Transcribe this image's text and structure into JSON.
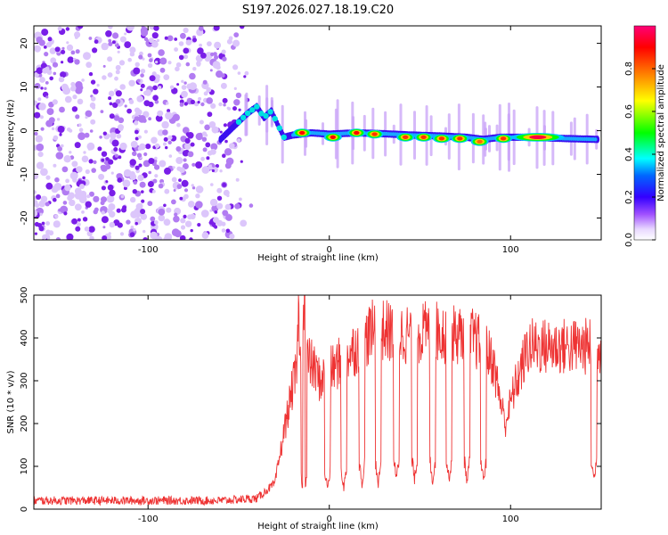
{
  "figure": {
    "title": "S197.2026.027.18.19.C20"
  },
  "chart_data": [
    {
      "type": "heatmap",
      "name": "spectrogram",
      "xlabel": "Height of straight line (km)",
      "ylabel": "Frequency (Hz)",
      "xlim": [
        -163,
        150
      ],
      "ylim": [
        -25,
        24
      ],
      "xticks": [
        {
          "value": -100,
          "label": "-100"
        },
        {
          "value": 0,
          "label": "0"
        },
        {
          "value": 100,
          "label": "100"
        }
      ],
      "yticks": [
        {
          "value": -20,
          "label": "-20"
        },
        {
          "value": -10,
          "label": "-10"
        },
        {
          "value": 0,
          "label": "0"
        },
        {
          "value": 10,
          "label": "10"
        },
        {
          "value": 20,
          "label": "20"
        }
      ],
      "colorbar": {
        "label": "Normalized spectral amplitude",
        "range": [
          0.0,
          1.0
        ],
        "ticks": [
          {
            "value": 0.0,
            "label": "0.0"
          },
          {
            "value": 0.2,
            "label": "0.2"
          },
          {
            "value": 0.4,
            "label": "0.4"
          },
          {
            "value": 0.6,
            "label": "0.6"
          },
          {
            "value": 0.8,
            "label": "0.8"
          }
        ]
      },
      "noise_region": {
        "x_range": [
          -163,
          -50
        ],
        "freq_range": [
          -25,
          24
        ],
        "amplitude": 0.1
      },
      "signal_track": [
        {
          "x": -60,
          "f": -2.0
        },
        {
          "x": -55,
          "f": 0.0
        },
        {
          "x": -50,
          "f": 2.0
        },
        {
          "x": -45,
          "f": 4.0
        },
        {
          "x": -40,
          "f": 5.5
        },
        {
          "x": -36,
          "f": 3.0
        },
        {
          "x": -32,
          "f": 4.5
        },
        {
          "x": -28,
          "f": 1.0
        },
        {
          "x": -25,
          "f": -1.5
        },
        {
          "x": -20,
          "f": -1.0
        },
        {
          "x": -10,
          "f": -0.5
        },
        {
          "x": 0,
          "f": -0.8
        },
        {
          "x": 15,
          "f": -0.5
        },
        {
          "x": 30,
          "f": -0.7
        },
        {
          "x": 45,
          "f": -1.0
        },
        {
          "x": 60,
          "f": -1.2
        },
        {
          "x": 75,
          "f": -1.5
        },
        {
          "x": 85,
          "f": -2.0
        },
        {
          "x": 95,
          "f": -1.5
        },
        {
          "x": 110,
          "f": -1.5
        },
        {
          "x": 130,
          "f": -1.8
        },
        {
          "x": 148,
          "f": -2.0
        }
      ],
      "peaks": [
        {
          "x": -15,
          "f": -0.5,
          "amplitude": 0.9
        },
        {
          "x": 2,
          "f": -1.5,
          "amplitude": 0.9
        },
        {
          "x": 15,
          "f": -0.5,
          "amplitude": 0.9
        },
        {
          "x": 25,
          "f": -0.8,
          "amplitude": 0.85
        },
        {
          "x": 42,
          "f": -1.5,
          "amplitude": 0.85
        },
        {
          "x": 52,
          "f": -1.5,
          "amplitude": 0.85
        },
        {
          "x": 62,
          "f": -1.8,
          "amplitude": 0.85
        },
        {
          "x": 72,
          "f": -1.8,
          "amplitude": 0.85
        },
        {
          "x": 83,
          "f": -2.5,
          "amplitude": 0.8
        },
        {
          "x": 96,
          "f": -1.8,
          "amplitude": 0.85
        },
        {
          "x": 115,
          "f": -1.5,
          "amplitude": 0.95
        }
      ]
    },
    {
      "type": "line",
      "name": "snr",
      "color": "#ee3333",
      "xlabel": "Height of straight line (km)",
      "ylabel": "SNR (10 * v/v)",
      "xlim": [
        -163,
        150
      ],
      "ylim": [
        0,
        500
      ],
      "xticks": [
        {
          "value": -100,
          "label": "-100"
        },
        {
          "value": 0,
          "label": "0"
        },
        {
          "value": 100,
          "label": "100"
        }
      ],
      "yticks": [
        {
          "value": 0,
          "label": "0"
        },
        {
          "value": 100,
          "label": "100"
        },
        {
          "value": 200,
          "label": "200"
        },
        {
          "value": 300,
          "label": "300"
        },
        {
          "value": 400,
          "label": "400"
        },
        {
          "value": 500,
          "label": "500"
        }
      ],
      "envelope": [
        {
          "x": -163,
          "y": 20
        },
        {
          "x": -60,
          "y": 20
        },
        {
          "x": -40,
          "y": 25
        },
        {
          "x": -30,
          "y": 60
        },
        {
          "x": -25,
          "y": 180
        },
        {
          "x": -20,
          "y": 290
        },
        {
          "x": -15,
          "y": 360
        },
        {
          "x": -10,
          "y": 340
        },
        {
          "x": -5,
          "y": 300
        },
        {
          "x": 5,
          "y": 340
        },
        {
          "x": 15,
          "y": 380
        },
        {
          "x": 25,
          "y": 420
        },
        {
          "x": 40,
          "y": 410
        },
        {
          "x": 60,
          "y": 415
        },
        {
          "x": 80,
          "y": 400
        },
        {
          "x": 90,
          "y": 350
        },
        {
          "x": 97,
          "y": 200
        },
        {
          "x": 102,
          "y": 280
        },
        {
          "x": 110,
          "y": 380
        },
        {
          "x": 130,
          "y": 380
        },
        {
          "x": 148,
          "y": 380
        }
      ],
      "dips": [
        {
          "x": -31,
          "y": 80
        },
        {
          "x": -14,
          "y": 30
        },
        {
          "x": -1,
          "y": 50
        },
        {
          "x": 8,
          "y": 50
        },
        {
          "x": 18,
          "y": 60
        },
        {
          "x": 27,
          "y": 60
        },
        {
          "x": 37,
          "y": 70
        },
        {
          "x": 47,
          "y": 70
        },
        {
          "x": 57,
          "y": 65
        },
        {
          "x": 66,
          "y": 70
        },
        {
          "x": 76,
          "y": 65
        },
        {
          "x": 85,
          "y": 70
        },
        {
          "x": 146,
          "y": 70
        }
      ],
      "spikes": [
        {
          "x": -14,
          "y": 500
        },
        {
          "x": -17,
          "y": 460
        }
      ]
    }
  ]
}
